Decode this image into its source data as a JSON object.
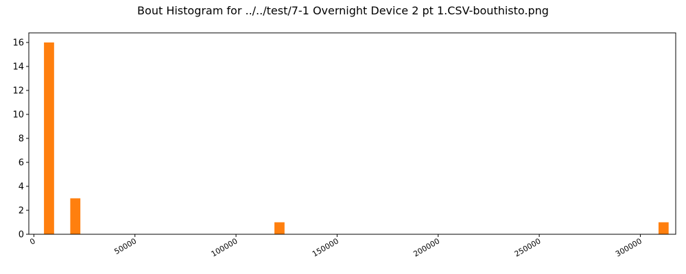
{
  "chart_data": {
    "type": "bar",
    "title": "Bout Histogram for ../../test/7-1 Overnight Device 2 pt 1.CSV-bouthisto.png",
    "xlabel": "",
    "ylabel": "",
    "xlim": [
      -2500,
      317500
    ],
    "ylim": [
      0,
      16.8
    ],
    "bin_width": 5000,
    "xticks": [
      0,
      50000,
      100000,
      150000,
      200000,
      250000,
      300000
    ],
    "yticks": [
      0,
      2,
      4,
      6,
      8,
      10,
      12,
      14,
      16
    ],
    "x": [
      10000,
      23000,
      124000,
      314000
    ],
    "values": [
      16,
      3,
      1,
      1
    ],
    "bar_color": "#ff7f0e",
    "grid": false,
    "legend": false
  }
}
